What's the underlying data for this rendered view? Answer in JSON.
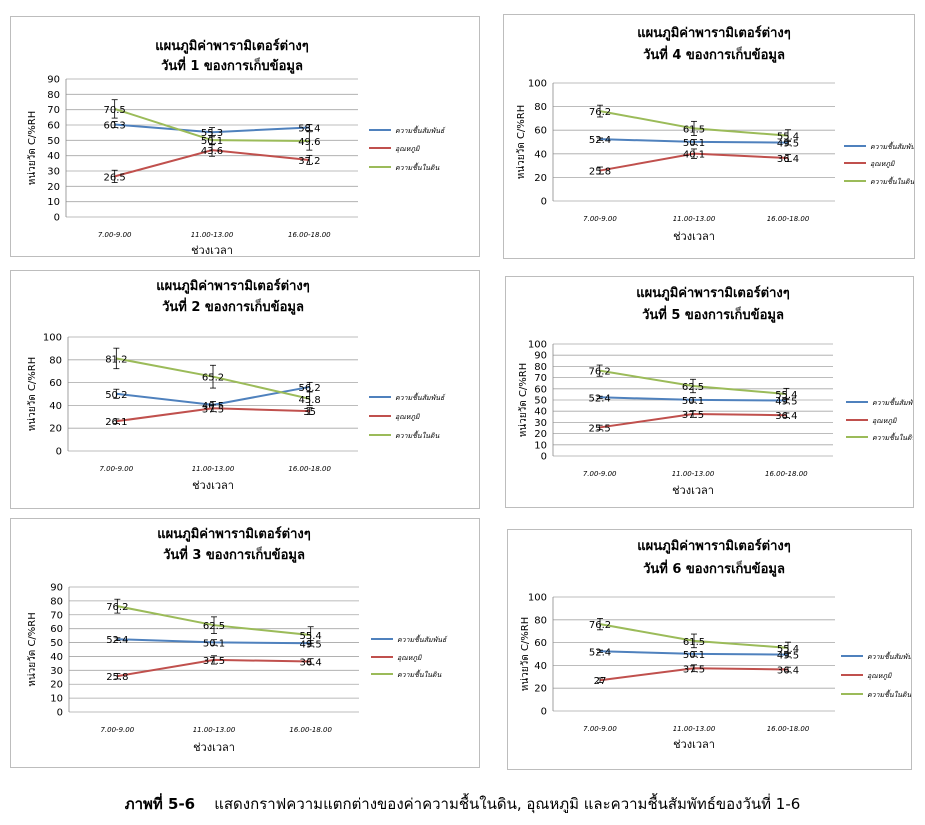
{
  "caption": {
    "label": "ภาพที่ 5-6",
    "text": "แสดงกราฟความแตกต่างของค่าความชื้นในดิน, อุณหภูมิ และความชื้นสัมพัทธ์ของวันที่ 1-6"
  },
  "colors": {
    "series": [
      "#4f81bd",
      "#c0504d",
      "#9bbb59"
    ]
  },
  "chart_data": [
    {
      "type": "line",
      "title_line1": "แผนภูมิค่าพารามิเตอร์ต่างๆ",
      "title_line2": "วันที่ 1 ของการเก็บข้อมูล",
      "xlabel": "ช่วงเวลา",
      "ylabel": "หน่วยวัด C/%RH",
      "ylim": [
        0,
        90
      ],
      "yticks": [
        "0",
        "10",
        "20",
        "30",
        "40",
        "50",
        "60",
        "70",
        "80",
        "90"
      ],
      "categories": [
        "7.00-9.00",
        "11.00-13.00",
        "16.00-18.00"
      ],
      "legend_position": "right",
      "grid": true,
      "series": [
        {
          "name": "ความชื้นสัมพันธ์",
          "values": [
            60.3,
            55.3,
            58.4
          ],
          "labels": [
            "60.3",
            "55.3",
            "58.4"
          ],
          "err": [
            2,
            3,
            2
          ]
        },
        {
          "name": "อุณหภูมิ",
          "values": [
            26.5,
            43.6,
            37.2
          ],
          "labels": [
            "26.5",
            "43.6",
            "37.2"
          ],
          "err": [
            4,
            4,
            3
          ]
        },
        {
          "name": "ความชื้นในดิน",
          "values": [
            70.5,
            50.1,
            49.6
          ],
          "labels": [
            "70.5",
            "50.1",
            "49.6"
          ],
          "err": [
            6,
            3,
            6
          ]
        }
      ]
    },
    {
      "type": "line",
      "title_line1": "แผนภูมิค่าพารามิเตอร์ต่างๆ",
      "title_line2": "วันที่ 2 ของการเก็บข้อมูล",
      "xlabel": "ช่วงเวลา",
      "ylabel": "หน่วยวัด C/%RH",
      "ylim": [
        0,
        100
      ],
      "yticks": [
        "0",
        "20",
        "40",
        "60",
        "80",
        "100"
      ],
      "categories": [
        "7.00-9.00",
        "11.00-13.00",
        "16.00-18.00"
      ],
      "legend_position": "right",
      "grid": true,
      "series": [
        {
          "name": "ความชื้นสัมพันธ์",
          "values": [
            50.2,
            40.5,
            56.2
          ],
          "labels": [
            "50.2",
            "40.5",
            "56.2"
          ],
          "err": [
            4,
            3,
            4
          ]
        },
        {
          "name": "อุณหภูมิ",
          "values": [
            26.1,
            37.5,
            35
          ],
          "labels": [
            "26.1",
            "37.5",
            "35"
          ],
          "err": [
            2,
            3,
            3
          ]
        },
        {
          "name": "ความชื้นในดิน",
          "values": [
            81.2,
            65.2,
            45.8
          ],
          "labels": [
            "81.2",
            "65.2",
            "45.8"
          ],
          "err": [
            9,
            10,
            6
          ]
        }
      ]
    },
    {
      "type": "line",
      "title_line1": "แผนภูมิค่าพารามิเตอร์ต่างๆ",
      "title_line2": "วันที่ 3 ของการเก็บข้อมูล",
      "xlabel": "ช่วงเวลา",
      "ylabel": "หน่วยวัด C/%RH",
      "ylim": [
        0,
        90
      ],
      "yticks": [
        "0",
        "10",
        "20",
        "30",
        "40",
        "50",
        "60",
        "70",
        "80",
        "90"
      ],
      "categories": [
        "7.00-9.00",
        "11.00-13.00",
        "16.00-18.00"
      ],
      "legend_position": "right",
      "grid": true,
      "series": [
        {
          "name": "ความชื้นสัมพันธ์",
          "values": [
            52.4,
            50.1,
            49.5
          ],
          "labels": [
            "52.4",
            "50.1",
            "49.5"
          ],
          "err": [
            1,
            2,
            2
          ]
        },
        {
          "name": "อุณหภูมิ",
          "values": [
            25.8,
            37.5,
            36.4
          ],
          "labels": [
            "25.8",
            "37.5",
            "36.4"
          ],
          "err": [
            2,
            3,
            2
          ]
        },
        {
          "name": "ความชื้นในดิน",
          "values": [
            76.2,
            62.5,
            55.4
          ],
          "labels": [
            "76.2",
            "62.5",
            "55.4"
          ],
          "err": [
            5,
            6,
            6
          ]
        }
      ]
    },
    {
      "type": "line",
      "title_line1": "แผนภูมิค่าพารามิเตอร์ต่างๆ",
      "title_line2": "วันที่ 4 ของการเก็บข้อมูล",
      "xlabel": "ช่วงเวลา",
      "ylabel": "หน่วยวัด C/%RH",
      "ylim": [
        0,
        100
      ],
      "yticks": [
        "0",
        "20",
        "40",
        "60",
        "80",
        "100"
      ],
      "categories": [
        "7.00-9.00",
        "11.00-13.00",
        "16.00-18.00"
      ],
      "legend_position": "right",
      "grid": true,
      "series": [
        {
          "name": "ความชื้นสัมพันธ์",
          "values": [
            52.4,
            50.1,
            49.5
          ],
          "labels": [
            "52.4",
            "50.1",
            "49.5"
          ],
          "err": [
            1,
            2,
            2
          ]
        },
        {
          "name": "อุณหภูมิ",
          "values": [
            25.8,
            40.1,
            36.4
          ],
          "labels": [
            "25.8",
            "40.1",
            "36.4"
          ],
          "err": [
            3,
            4,
            3
          ]
        },
        {
          "name": "ความชื้นในดิน",
          "values": [
            76.2,
            61.5,
            55.4
          ],
          "labels": [
            "76.2",
            "61.5",
            "55.4"
          ],
          "err": [
            5,
            6,
            5
          ]
        }
      ]
    },
    {
      "type": "line",
      "title_line1": "แผนภูมิค่าพารามิเตอร์ต่างๆ",
      "title_line2": "วันที่ 5 ของการเก็บข้อมูล",
      "xlabel": "ช่วงเวลา",
      "ylabel": "หน่วยวัด C/%RH",
      "ylim": [
        0,
        100
      ],
      "yticks": [
        "0",
        "10",
        "20",
        "30",
        "40",
        "50",
        "60",
        "70",
        "80",
        "90",
        "100"
      ],
      "categories": [
        "7.00-9.00",
        "11.00-13.00",
        "16.00-18.00"
      ],
      "legend_position": "right",
      "grid": true,
      "series": [
        {
          "name": "ความชื้นสัมพันธ์",
          "values": [
            52.4,
            50.1,
            49.5
          ],
          "labels": [
            "52.4",
            "50.1",
            "49.5"
          ],
          "err": [
            1,
            2,
            2
          ]
        },
        {
          "name": "อุณหภูมิ",
          "values": [
            25.5,
            37.5,
            36.4
          ],
          "labels": [
            "25.5",
            "37.5",
            "36.4"
          ],
          "err": [
            2,
            3,
            2
          ]
        },
        {
          "name": "ความชื้นในดิน",
          "values": [
            76.2,
            62.5,
            55.4
          ],
          "labels": [
            "76.2",
            "62.5",
            "55.4"
          ],
          "err": [
            5,
            6,
            5
          ]
        }
      ]
    },
    {
      "type": "line",
      "title_line1": "แผนภูมิค่าพารามิเตอร์ต่างๆ",
      "title_line2": "วันที่ 6 ของการเก็บข้อมูล",
      "xlabel": "ช่วงเวลา",
      "ylabel": "หน่วยวัด C/%RH",
      "ylim": [
        0,
        100
      ],
      "yticks": [
        "0",
        "20",
        "40",
        "60",
        "80",
        "100"
      ],
      "categories": [
        "7.00-9.00",
        "11.00-13.00",
        "16.00-18.00"
      ],
      "legend_position": "right",
      "grid": true,
      "series": [
        {
          "name": "ความชื้นสัมพันธ์",
          "values": [
            52.4,
            50.1,
            49.5
          ],
          "labels": [
            "52.4",
            "50.1",
            "49.5"
          ],
          "err": [
            1,
            2,
            2
          ]
        },
        {
          "name": "อุณหภูมิ",
          "values": [
            27,
            37.5,
            36.4
          ],
          "labels": [
            "27",
            "37.5",
            "36.4"
          ],
          "err": [
            2,
            3,
            2
          ]
        },
        {
          "name": "ความชื้นในดิน",
          "values": [
            76.2,
            61.5,
            55.4
          ],
          "labels": [
            "76.2",
            "61.5",
            "55.4"
          ],
          "err": [
            5,
            6,
            5
          ]
        }
      ]
    }
  ]
}
